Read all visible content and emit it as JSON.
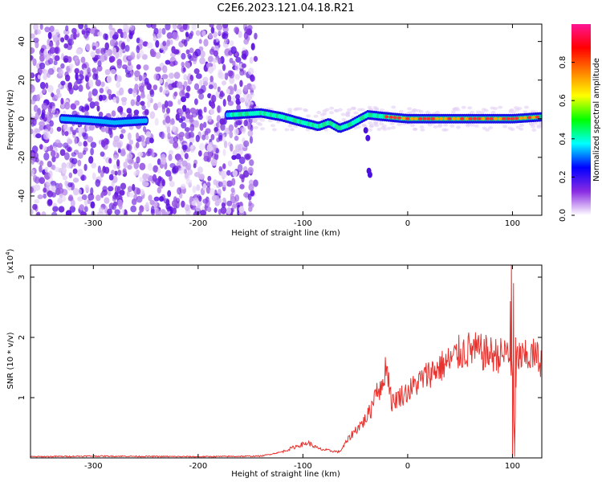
{
  "figure": {
    "title": "C2E6.2023.121.04.18.R21"
  },
  "chart_data": [
    {
      "type": "heatmap",
      "title": "C2E6.2023.121.04.18.R21",
      "xlabel": "Height of straight line (km)",
      "ylabel": "Frequency (Hz)",
      "xlim": [
        -360,
        128
      ],
      "ylim": [
        -50,
        49
      ],
      "xticks": [
        -300,
        -200,
        -100,
        0,
        100
      ],
      "xtick_labels": [
        "-300",
        "-200",
        "-100",
        "0",
        "100"
      ],
      "yticks": [
        -40,
        -20,
        0,
        20,
        40
      ],
      "ytick_labels": [
        "-40",
        "-20",
        "0",
        "20",
        "40"
      ],
      "grid": false,
      "colorbar": {
        "label": "Normalized spectral amplitude",
        "range": [
          0,
          1
        ],
        "ticks": [
          0.0,
          0.2,
          0.4,
          0.6,
          0.8
        ],
        "tick_labels": [
          "0.0",
          "0.2",
          "0.4",
          "0.6",
          "0.8"
        ],
        "colormap": [
          "#ffffff",
          "#8a2be2",
          "#0000ff",
          "#00ffff",
          "#00ff00",
          "#ffff00",
          "#ff8000",
          "#ff0000",
          "#ff1493"
        ]
      },
      "ridge": [
        {
          "x": -330,
          "y": 0
        },
        {
          "x": -300,
          "y": -1
        },
        {
          "x": -280,
          "y": -2
        },
        {
          "x": -250,
          "y": -1
        },
        {
          "x": -170,
          "y": 2
        },
        {
          "x": -140,
          "y": 3
        },
        {
          "x": -120,
          "y": 1
        },
        {
          "x": -100,
          "y": -2
        },
        {
          "x": -85,
          "y": -4
        },
        {
          "x": -75,
          "y": -2
        },
        {
          "x": -65,
          "y": -5
        },
        {
          "x": -55,
          "y": -3
        },
        {
          "x": -45,
          "y": 0
        },
        {
          "x": -38,
          "y": 2
        },
        {
          "x": -20,
          "y": 1
        },
        {
          "x": 0,
          "y": 0
        },
        {
          "x": 50,
          "y": 0
        },
        {
          "x": 100,
          "y": 0
        },
        {
          "x": 128,
          "y": 1
        }
      ]
    },
    {
      "type": "line",
      "xlabel": "Height of straight line (km)",
      "ylabel": "SNR (10 * v/v)",
      "yscale_label": "(x10",
      "yscale_exp": "4",
      "yscale_close": ")",
      "xlim": [
        -360,
        128
      ],
      "ylim": [
        0,
        3.2
      ],
      "xticks": [
        -300,
        -200,
        -100,
        0,
        100
      ],
      "xtick_labels": [
        "-300",
        "-200",
        "-100",
        "0",
        "100"
      ],
      "yticks": [
        1,
        2,
        3
      ],
      "ytick_labels": [
        "1",
        "2",
        "3"
      ],
      "grid": false,
      "color": "#e8322e",
      "series": [
        {
          "x": [
            -360,
            -300,
            -200,
            -140,
            -120,
            -105,
            -95,
            -85,
            -75,
            -65,
            -55,
            -48,
            -42,
            -35,
            -30,
            -25,
            -22,
            -20,
            -15,
            -10,
            -5,
            0,
            10,
            20,
            30,
            40,
            50,
            60,
            70,
            80,
            90,
            95,
            100,
            102,
            104,
            106,
            110,
            120,
            128
          ],
          "y": [
            0.02,
            0.03,
            0.02,
            0.03,
            0.1,
            0.2,
            0.25,
            0.15,
            0.12,
            0.1,
            0.35,
            0.5,
            0.6,
            0.8,
            1.2,
            1.1,
            1.45,
            1.55,
            0.9,
            1.0,
            1.05,
            1.1,
            1.25,
            1.4,
            1.5,
            1.6,
            1.75,
            1.8,
            1.75,
            1.72,
            1.7,
            1.75,
            1.5,
            0.2,
            1.6,
            1.7,
            1.65,
            1.7,
            1.62
          ]
        }
      ]
    }
  ]
}
